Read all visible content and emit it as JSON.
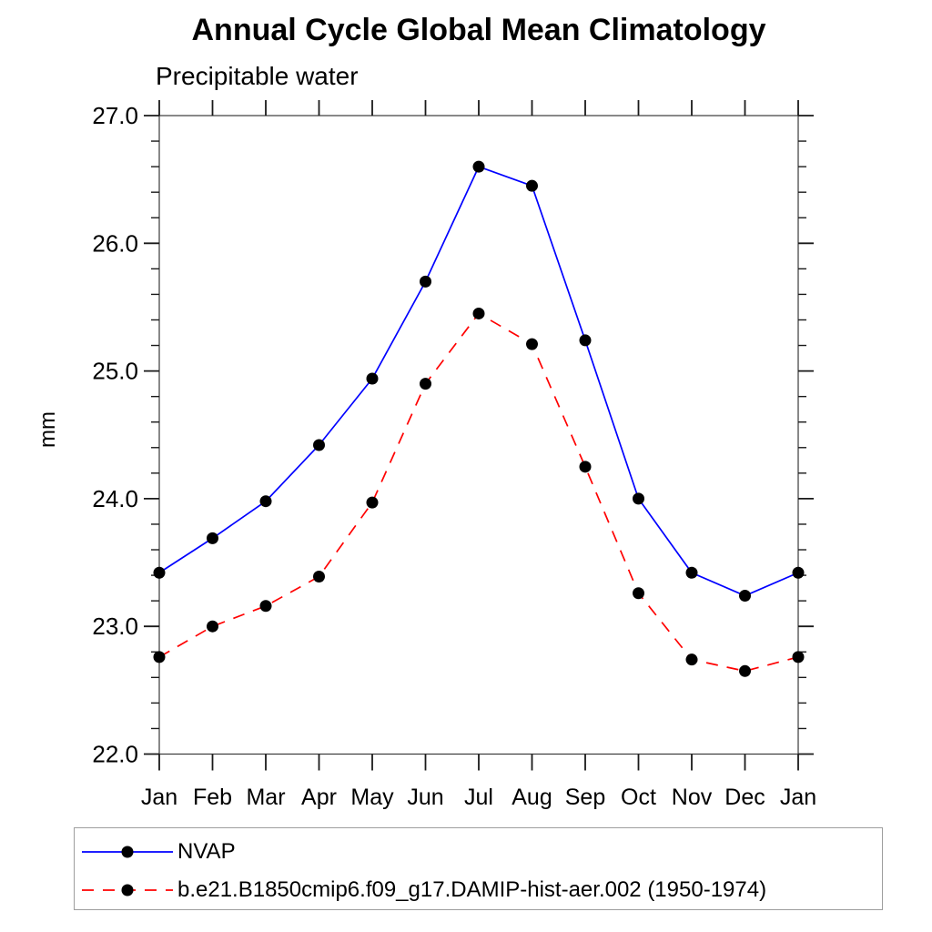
{
  "page": {
    "background": "#ffffff"
  },
  "chart_data": {
    "type": "line",
    "title": "Annual Cycle Global Mean Climatology",
    "subtitle": "Precipitable water",
    "ylabel": "mm",
    "xlabel": "",
    "x_tick_labels": [
      "Jan",
      "Feb",
      "Mar",
      "Apr",
      "May",
      "Jun",
      "Jul",
      "Aug",
      "Sep",
      "Oct",
      "Nov",
      "Dec",
      "Jan"
    ],
    "ylim": [
      22.0,
      27.0
    ],
    "y_major_ticks": [
      22.0,
      23.0,
      24.0,
      25.0,
      26.0,
      27.0
    ],
    "y_major_tick_labels": [
      "22.0",
      "23.0",
      "24.0",
      "25.0",
      "26.0",
      "27.0"
    ],
    "y_minor_step": 0.2,
    "grid": false,
    "legend_position": "bottom",
    "axis_color": "#3a3a3a",
    "tick_color": "#1a1a1a",
    "legend_border_color": "#9e9e9e",
    "series": [
      {
        "name": "NVAP",
        "color": "#0000ff",
        "line_style": "solid",
        "marker": "circle",
        "marker_color": "#000000",
        "values": [
          23.42,
          23.69,
          23.98,
          24.42,
          24.94,
          25.7,
          26.6,
          26.45,
          25.24,
          24.0,
          23.42,
          23.24,
          23.42
        ]
      },
      {
        "name": "b.e21.B1850cmip6.f09_g17.DAMIP-hist-aer.002 (1950-1974)",
        "color": "#ff0000",
        "line_style": "dashed",
        "marker": "circle",
        "marker_color": "#000000",
        "values": [
          22.76,
          23.0,
          23.16,
          23.39,
          23.97,
          24.9,
          25.45,
          25.21,
          24.25,
          23.26,
          22.74,
          22.65,
          22.76
        ]
      }
    ]
  }
}
